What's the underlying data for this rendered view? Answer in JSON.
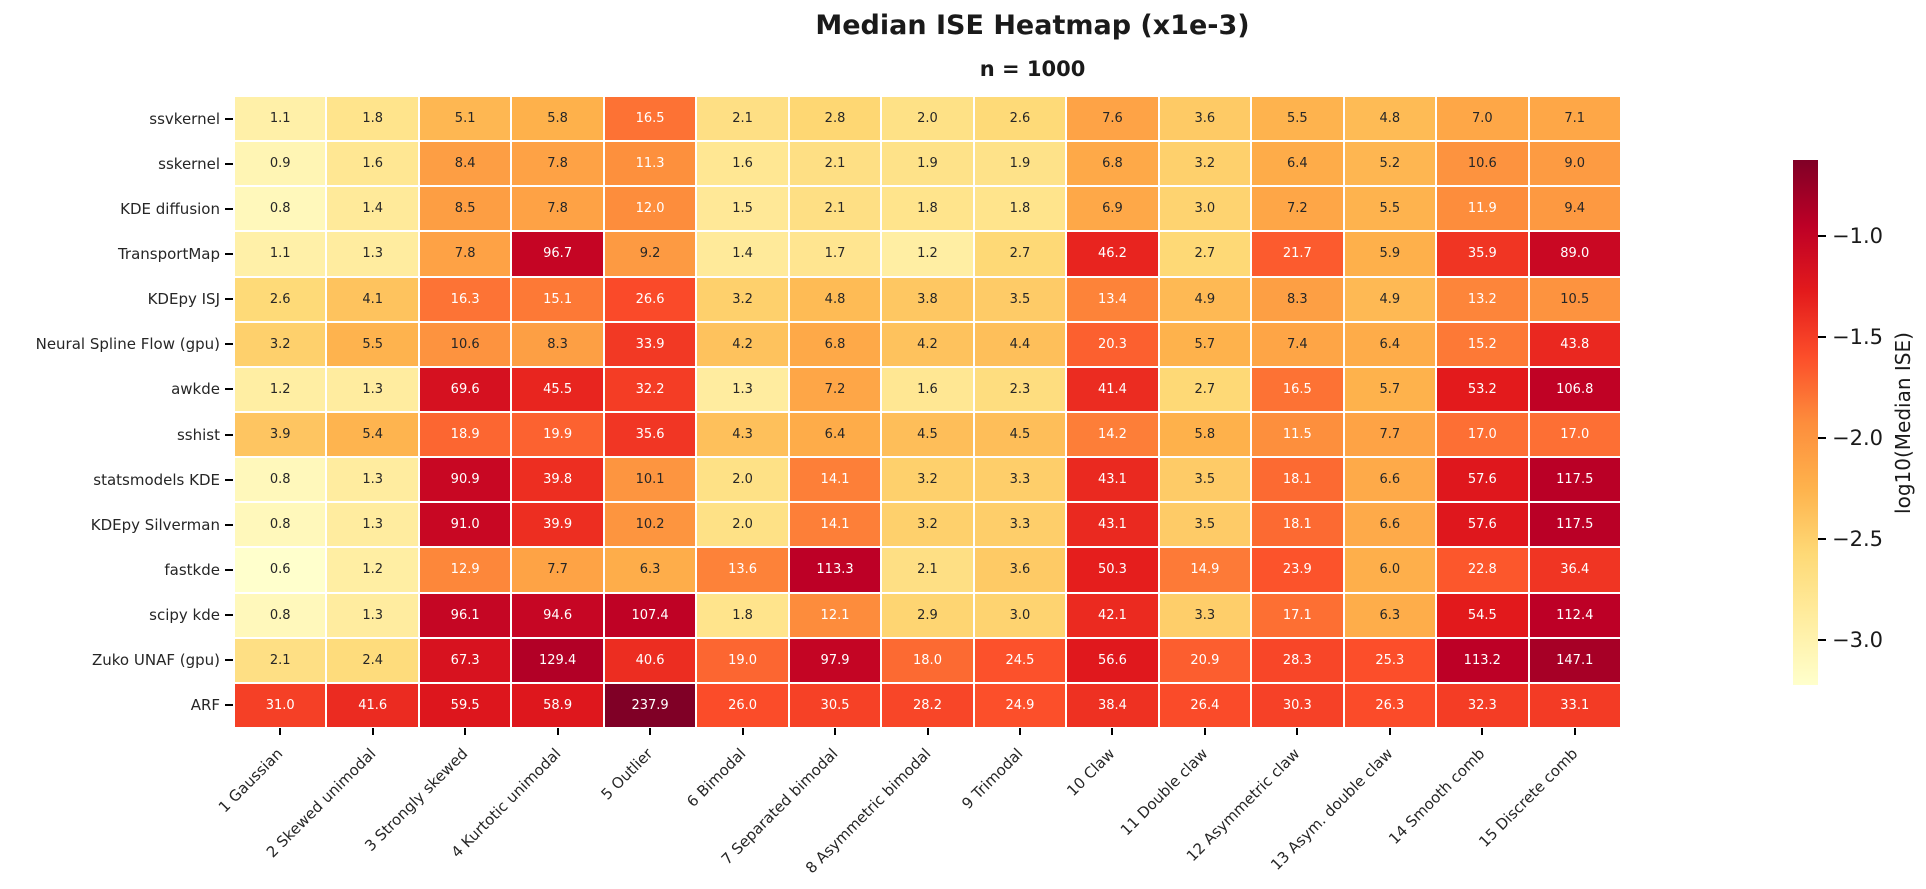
{
  "figure": {
    "title": "Median ISE Heatmap (x1e-3)",
    "subtitle": "n = 1000"
  },
  "chart_data": {
    "type": "heatmap",
    "title": "Median ISE Heatmap (x1e-3)",
    "subtitle": "n = 1000",
    "rows": [
      "ssvkernel",
      "sskernel",
      "KDE diffusion",
      "TransportMap",
      "KDEpy ISJ",
      "Neural Spline Flow (gpu)",
      "awkde",
      "sshist",
      "statsmodels KDE",
      "KDEpy Silverman",
      "fastkde",
      "scipy kde",
      "Zuko UNAF (gpu)",
      "ARF"
    ],
    "columns": [
      "1 Gaussian",
      "2 Skewed unimodal",
      "3 Strongly skewed",
      "4 Kurtotic unimodal",
      "5 Outlier",
      "6 Bimodal",
      "7 Separated bimodal",
      "8 Asymmetric bimodal",
      "9 Trimodal",
      "10 Claw",
      "11 Double claw",
      "12 Asymmetric claw",
      "13 Asym. double claw",
      "14 Smooth comb",
      "15 Discrete comb"
    ],
    "values": [
      [
        1.1,
        1.8,
        5.1,
        5.8,
        16.5,
        2.1,
        2.8,
        2.0,
        2.6,
        7.6,
        3.6,
        5.5,
        4.8,
        7.0,
        7.1
      ],
      [
        0.9,
        1.6,
        8.4,
        7.8,
        11.3,
        1.6,
        2.1,
        1.9,
        1.9,
        6.8,
        3.2,
        6.4,
        5.2,
        10.6,
        9.0
      ],
      [
        0.8,
        1.4,
        8.5,
        7.8,
        12.0,
        1.5,
        2.1,
        1.8,
        1.8,
        6.9,
        3.0,
        7.2,
        5.5,
        11.9,
        9.4
      ],
      [
        1.1,
        1.3,
        7.8,
        96.7,
        9.2,
        1.4,
        1.7,
        1.2,
        2.7,
        46.2,
        2.7,
        21.7,
        5.9,
        35.9,
        89.0
      ],
      [
        2.6,
        4.1,
        16.3,
        15.1,
        26.6,
        3.2,
        4.8,
        3.8,
        3.5,
        13.4,
        4.9,
        8.3,
        4.9,
        13.2,
        10.5
      ],
      [
        3.2,
        5.5,
        10.6,
        8.3,
        33.9,
        4.2,
        6.8,
        4.2,
        4.4,
        20.3,
        5.7,
        7.4,
        6.4,
        15.2,
        43.8
      ],
      [
        1.2,
        1.3,
        69.6,
        45.5,
        32.2,
        1.3,
        7.2,
        1.6,
        2.3,
        41.4,
        2.7,
        16.5,
        5.7,
        53.2,
        106.8
      ],
      [
        3.9,
        5.4,
        18.9,
        19.9,
        35.6,
        4.3,
        6.4,
        4.5,
        4.5,
        14.2,
        5.8,
        11.5,
        7.7,
        17.0,
        17.0
      ],
      [
        0.8,
        1.3,
        90.9,
        39.8,
        10.1,
        2.0,
        14.1,
        3.2,
        3.3,
        43.1,
        3.5,
        18.1,
        6.6,
        57.6,
        117.5
      ],
      [
        0.8,
        1.3,
        91.0,
        39.9,
        10.2,
        2.0,
        14.1,
        3.2,
        3.3,
        43.1,
        3.5,
        18.1,
        6.6,
        57.6,
        117.5
      ],
      [
        0.6,
        1.2,
        12.9,
        7.7,
        6.3,
        13.6,
        113.3,
        2.1,
        3.6,
        50.3,
        14.9,
        23.9,
        6.0,
        22.8,
        36.4
      ],
      [
        0.8,
        1.3,
        96.1,
        94.6,
        107.4,
        1.8,
        12.1,
        2.9,
        3.0,
        42.1,
        3.3,
        17.1,
        6.3,
        54.5,
        112.4
      ],
      [
        2.1,
        2.4,
        67.3,
        129.4,
        40.6,
        19.0,
        97.9,
        18.0,
        24.5,
        56.6,
        20.9,
        28.3,
        25.3,
        113.2,
        147.1
      ],
      [
        31.0,
        41.6,
        59.5,
        58.9,
        237.9,
        26.0,
        30.5,
        28.2,
        24.9,
        38.4,
        26.4,
        30.3,
        26.3,
        32.3,
        33.1
      ]
    ],
    "annotation_decimals": 1,
    "color_mapping": {
      "colormap": "YlOrRd",
      "colormap_stops": [
        "#ffffcc",
        "#ffeda0",
        "#fed976",
        "#feb24c",
        "#fd8d3c",
        "#fc4e2a",
        "#e31a1c",
        "#bd0026",
        "#800026"
      ],
      "transform": "log10(value * 1e-3)",
      "vmin": -3.2218,
      "vmax": -0.6236
    },
    "colorbar": {
      "label": "log10(Median ISE)",
      "ticks": [
        -1.0,
        -1.5,
        -2.0,
        -2.5,
        -3.0
      ]
    },
    "grid_line_color": "#ffffff",
    "legend_position": "right"
  }
}
